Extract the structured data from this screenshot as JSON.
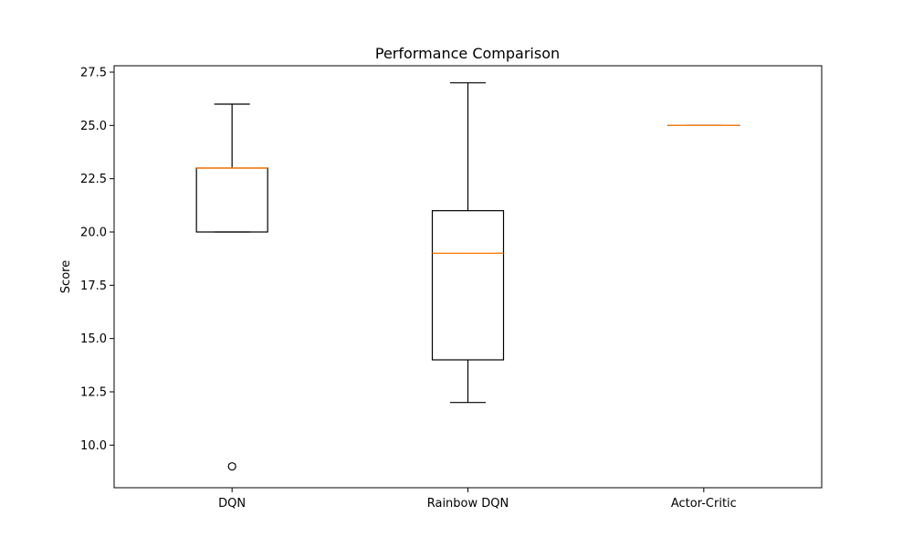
{
  "chart_data": {
    "type": "box",
    "title": "Performance Comparison",
    "xlabel": "",
    "ylabel": "Score",
    "ylim": [
      8.0,
      27.8
    ],
    "yticks": [
      "10.0",
      "12.5",
      "15.0",
      "17.5",
      "20.0",
      "22.5",
      "25.0",
      "27.5"
    ],
    "categories": [
      "DQN",
      "Rainbow DQN",
      "Actor-Critic"
    ],
    "boxes": [
      {
        "category": "DQN",
        "whisker_low": 20,
        "q1": 20,
        "median": 23,
        "q3": 23,
        "whisker_high": 26,
        "fliers": [
          9
        ]
      },
      {
        "category": "Rainbow DQN",
        "whisker_low": 12,
        "q1": 14,
        "median": 19,
        "q3": 21,
        "whisker_high": 27,
        "fliers": []
      },
      {
        "category": "Actor-Critic",
        "whisker_low": 25,
        "q1": 25,
        "median": 25,
        "q3": 25,
        "whisker_high": 25,
        "fliers": []
      }
    ],
    "median_color": "#ff7f0e",
    "box_color": "#000000",
    "grid": false,
    "legend": "none"
  }
}
